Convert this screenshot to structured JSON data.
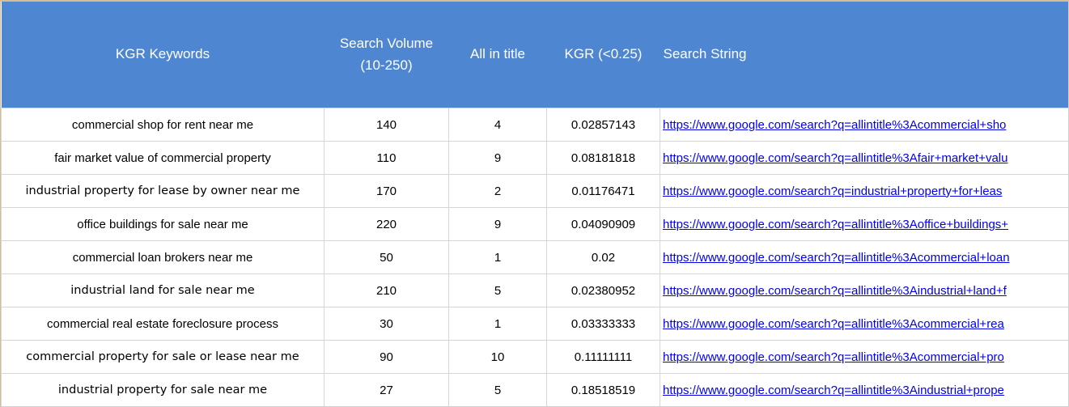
{
  "table": {
    "header": {
      "kgr_keywords": "KGR Keywords",
      "search_volume": "Search Volume (10-250)",
      "all_in_title": "All in title",
      "kgr": "KGR (<0.25)",
      "search_string": "Search String"
    },
    "rows": [
      {
        "keyword": "commercial shop for rent near me",
        "search_volume": "140",
        "all_in_title": "4",
        "kgr": "0.02857143",
        "search_string": "https://www.google.com/search?q=allintitle%3Acommercial+sho",
        "alt_font": false
      },
      {
        "keyword": "fair market value of commercial property",
        "search_volume": "110",
        "all_in_title": "9",
        "kgr": "0.08181818",
        "search_string": "https://www.google.com/search?q=allintitle%3Afair+market+valu",
        "alt_font": false
      },
      {
        "keyword": "industrial property for lease by owner near me",
        "search_volume": "170",
        "all_in_title": "2",
        "kgr": "0.01176471",
        "search_string": "https://www.google.com/search?q=industrial+property+for+leas",
        "alt_font": true
      },
      {
        "keyword": "office buildings for sale near me",
        "search_volume": "220",
        "all_in_title": "9",
        "kgr": "0.04090909",
        "search_string": "https://www.google.com/search?q=allintitle%3Aoffice+buildings+",
        "alt_font": false
      },
      {
        "keyword": "commercial loan brokers near me",
        "search_volume": "50",
        "all_in_title": "1",
        "kgr": "0.02",
        "search_string": "https://www.google.com/search?q=allintitle%3Acommercial+loan",
        "alt_font": false
      },
      {
        "keyword": "industrial land for sale near me",
        "search_volume": "210",
        "all_in_title": "5",
        "kgr": "0.02380952",
        "search_string": "https://www.google.com/search?q=allintitle%3Aindustrial+land+f",
        "alt_font": true
      },
      {
        "keyword": "commercial real estate foreclosure process",
        "search_volume": "30",
        "all_in_title": "1",
        "kgr": "0.03333333",
        "search_string": "https://www.google.com/search?q=allintitle%3Acommercial+rea",
        "alt_font": false
      },
      {
        "keyword": "commercial property for sale or lease near me",
        "search_volume": "90",
        "all_in_title": "10",
        "kgr": "0.11111111",
        "search_string": "https://www.google.com/search?q=allintitle%3Acommercial+pro",
        "alt_font": true
      },
      {
        "keyword": "industrial property for sale near me",
        "search_volume": "27",
        "all_in_title": "5",
        "kgr": "0.18518519",
        "search_string": "https://www.google.com/search?q=allintitle%3Aindustrial+prope",
        "alt_font": true
      }
    ]
  },
  "colors": {
    "header_bg": "#4e86d1",
    "header_text": "#ffffff",
    "link": "#0000ee",
    "gridline": "#d6d6d6",
    "frame": "#d6bd92"
  }
}
